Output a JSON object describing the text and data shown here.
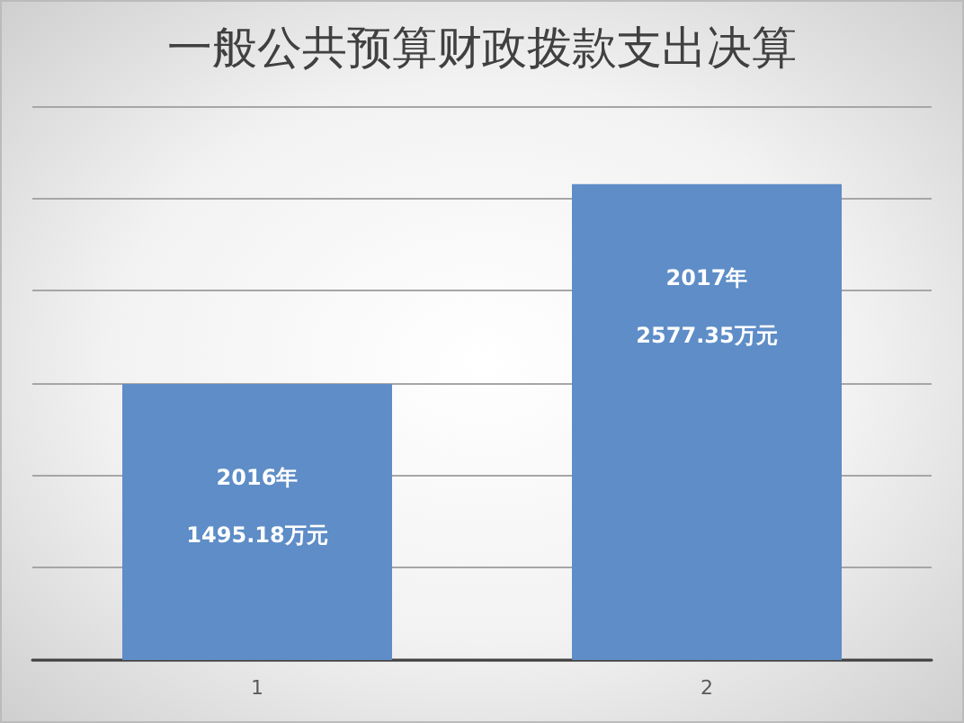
{
  "chart_data": {
    "type": "bar",
    "title": "一般公共预算财政拨款支出决算",
    "categories": [
      "1",
      "2"
    ],
    "values": [
      1495.18,
      2577.35
    ],
    "value_labels": [
      "1495.18万元",
      "2577.35万元"
    ],
    "annotations": [
      "2016年",
      "2017年"
    ],
    "color": "#5e8dc7",
    "tick_labels": "x",
    "grid": "y"
  }
}
